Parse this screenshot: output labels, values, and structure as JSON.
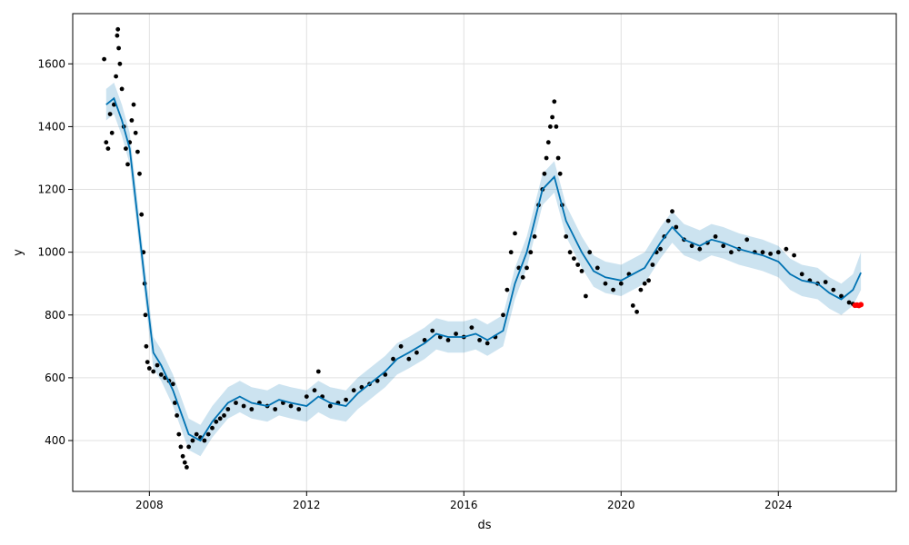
{
  "chart_data": {
    "type": "line",
    "title": "",
    "xlabel": "ds",
    "ylabel": "y",
    "xlim": [
      2006.05,
      2027.0
    ],
    "ylim": [
      238,
      1760
    ],
    "grid": true,
    "x_ticks": [
      {
        "value": 2008,
        "label": "2008"
      },
      {
        "value": 2012,
        "label": "2012"
      },
      {
        "value": 2016,
        "label": "2016"
      },
      {
        "value": 2020,
        "label": "2020"
      },
      {
        "value": 2024,
        "label": "2024"
      }
    ],
    "y_ticks": [
      {
        "value": 400,
        "label": "400"
      },
      {
        "value": 600,
        "label": "600"
      },
      {
        "value": 800,
        "label": "800"
      },
      {
        "value": 1000,
        "label": "1000"
      },
      {
        "value": 1200,
        "label": "1200"
      },
      {
        "value": 1400,
        "label": "1400"
      },
      {
        "value": 1600,
        "label": "1600"
      }
    ],
    "colors": {
      "observed": "#000000",
      "forecast": "#0072B2",
      "interval": "#0072B2",
      "highlight": "#ff0000",
      "grid": "#e0e0e0"
    },
    "series": [
      {
        "role": "observed",
        "kind": "scatter",
        "points": [
          [
            2006.85,
            1615
          ],
          [
            2006.9,
            1350
          ],
          [
            2006.95,
            1330
          ],
          [
            2007.0,
            1440
          ],
          [
            2007.05,
            1380
          ],
          [
            2007.1,
            1470
          ],
          [
            2007.15,
            1560
          ],
          [
            2007.18,
            1690
          ],
          [
            2007.2,
            1710
          ],
          [
            2007.22,
            1650
          ],
          [
            2007.25,
            1600
          ],
          [
            2007.3,
            1520
          ],
          [
            2007.35,
            1400
          ],
          [
            2007.4,
            1330
          ],
          [
            2007.45,
            1280
          ],
          [
            2007.5,
            1350
          ],
          [
            2007.55,
            1420
          ],
          [
            2007.6,
            1470
          ],
          [
            2007.65,
            1380
          ],
          [
            2007.7,
            1320
          ],
          [
            2007.75,
            1250
          ],
          [
            2007.8,
            1120
          ],
          [
            2007.85,
            1000
          ],
          [
            2007.88,
            900
          ],
          [
            2007.9,
            800
          ],
          [
            2007.92,
            700
          ],
          [
            2007.95,
            650
          ],
          [
            2008.0,
            630
          ],
          [
            2008.1,
            620
          ],
          [
            2008.2,
            640
          ],
          [
            2008.3,
            610
          ],
          [
            2008.4,
            600
          ],
          [
            2008.5,
            590
          ],
          [
            2008.6,
            580
          ],
          [
            2008.65,
            520
          ],
          [
            2008.7,
            480
          ],
          [
            2008.75,
            420
          ],
          [
            2008.8,
            380
          ],
          [
            2008.85,
            350
          ],
          [
            2008.9,
            330
          ],
          [
            2008.95,
            315
          ],
          [
            2009.0,
            380
          ],
          [
            2009.1,
            400
          ],
          [
            2009.2,
            420
          ],
          [
            2009.3,
            410
          ],
          [
            2009.4,
            400
          ],
          [
            2009.5,
            420
          ],
          [
            2009.6,
            440
          ],
          [
            2009.7,
            460
          ],
          [
            2009.8,
            470
          ],
          [
            2009.9,
            480
          ],
          [
            2010.0,
            500
          ],
          [
            2010.2,
            520
          ],
          [
            2010.4,
            510
          ],
          [
            2010.6,
            500
          ],
          [
            2010.8,
            520
          ],
          [
            2011.0,
            510
          ],
          [
            2011.2,
            500
          ],
          [
            2011.4,
            520
          ],
          [
            2011.6,
            510
          ],
          [
            2011.8,
            500
          ],
          [
            2012.0,
            540
          ],
          [
            2012.2,
            560
          ],
          [
            2012.3,
            620
          ],
          [
            2012.4,
            540
          ],
          [
            2012.6,
            510
          ],
          [
            2012.8,
            520
          ],
          [
            2013.0,
            530
          ],
          [
            2013.2,
            560
          ],
          [
            2013.4,
            570
          ],
          [
            2013.6,
            580
          ],
          [
            2013.8,
            590
          ],
          [
            2014.0,
            610
          ],
          [
            2014.2,
            660
          ],
          [
            2014.4,
            700
          ],
          [
            2014.6,
            660
          ],
          [
            2014.8,
            680
          ],
          [
            2015.0,
            720
          ],
          [
            2015.2,
            750
          ],
          [
            2015.4,
            730
          ],
          [
            2015.6,
            720
          ],
          [
            2015.8,
            740
          ],
          [
            2016.0,
            730
          ],
          [
            2016.2,
            760
          ],
          [
            2016.4,
            720
          ],
          [
            2016.6,
            710
          ],
          [
            2016.8,
            730
          ],
          [
            2017.0,
            800
          ],
          [
            2017.1,
            880
          ],
          [
            2017.2,
            1000
          ],
          [
            2017.3,
            1060
          ],
          [
            2017.4,
            950
          ],
          [
            2017.5,
            920
          ],
          [
            2017.6,
            950
          ],
          [
            2017.7,
            1000
          ],
          [
            2017.8,
            1050
          ],
          [
            2017.9,
            1150
          ],
          [
            2018.0,
            1200
          ],
          [
            2018.05,
            1250
          ],
          [
            2018.1,
            1300
          ],
          [
            2018.15,
            1350
          ],
          [
            2018.2,
            1400
          ],
          [
            2018.25,
            1430
          ],
          [
            2018.3,
            1480
          ],
          [
            2018.35,
            1400
          ],
          [
            2018.4,
            1300
          ],
          [
            2018.45,
            1250
          ],
          [
            2018.5,
            1150
          ],
          [
            2018.6,
            1050
          ],
          [
            2018.7,
            1000
          ],
          [
            2018.8,
            980
          ],
          [
            2018.9,
            960
          ],
          [
            2019.0,
            940
          ],
          [
            2019.1,
            860
          ],
          [
            2019.2,
            1000
          ],
          [
            2019.4,
            950
          ],
          [
            2019.6,
            900
          ],
          [
            2019.8,
            880
          ],
          [
            2020.0,
            900
          ],
          [
            2020.2,
            930
          ],
          [
            2020.3,
            830
          ],
          [
            2020.4,
            810
          ],
          [
            2020.5,
            880
          ],
          [
            2020.6,
            900
          ],
          [
            2020.7,
            910
          ],
          [
            2020.8,
            960
          ],
          [
            2020.9,
            1000
          ],
          [
            2021.0,
            1010
          ],
          [
            2021.1,
            1050
          ],
          [
            2021.2,
            1100
          ],
          [
            2021.3,
            1130
          ],
          [
            2021.4,
            1080
          ],
          [
            2021.6,
            1040
          ],
          [
            2021.8,
            1020
          ],
          [
            2022.0,
            1010
          ],
          [
            2022.2,
            1030
          ],
          [
            2022.4,
            1050
          ],
          [
            2022.6,
            1020
          ],
          [
            2022.8,
            1000
          ],
          [
            2023.0,
            1010
          ],
          [
            2023.2,
            1040
          ],
          [
            2023.4,
            1000
          ],
          [
            2023.6,
            1000
          ],
          [
            2023.8,
            995
          ],
          [
            2024.0,
            1000
          ],
          [
            2024.2,
            1010
          ],
          [
            2024.4,
            990
          ],
          [
            2024.6,
            930
          ],
          [
            2024.8,
            910
          ],
          [
            2025.0,
            900
          ],
          [
            2025.2,
            905
          ],
          [
            2025.4,
            880
          ],
          [
            2025.6,
            860
          ],
          [
            2025.8,
            840
          ],
          [
            2025.9,
            835
          ],
          [
            2026.0,
            830
          ]
        ]
      },
      {
        "role": "forecast",
        "kind": "line",
        "x": [
          2006.9,
          2007.1,
          2007.3,
          2007.5,
          2007.7,
          2007.9,
          2008.1,
          2008.3,
          2008.6,
          2009.0,
          2009.3,
          2009.6,
          2010.0,
          2010.3,
          2010.6,
          2011.0,
          2011.3,
          2011.6,
          2012.0,
          2012.3,
          2012.6,
          2013.0,
          2013.3,
          2013.6,
          2014.0,
          2014.3,
          2014.6,
          2015.0,
          2015.3,
          2015.6,
          2016.0,
          2016.3,
          2016.6,
          2017.0,
          2017.3,
          2017.6,
          2018.0,
          2018.3,
          2018.6,
          2019.0,
          2019.3,
          2019.6,
          2020.0,
          2020.3,
          2020.6,
          2021.0,
          2021.3,
          2021.6,
          2022.0,
          2022.3,
          2022.6,
          2023.0,
          2023.3,
          2023.6,
          2024.0,
          2024.3,
          2024.6,
          2025.0,
          2025.3,
          2025.6,
          2025.9,
          2026.1
        ],
        "y": [
          1470,
          1490,
          1420,
          1330,
          1110,
          890,
          680,
          640,
          560,
          420,
          400,
          460,
          520,
          540,
          520,
          510,
          530,
          520,
          510,
          540,
          520,
          510,
          550,
          580,
          620,
          660,
          680,
          710,
          740,
          730,
          730,
          740,
          720,
          750,
          900,
          1000,
          1200,
          1240,
          1100,
          1000,
          940,
          920,
          910,
          930,
          950,
          1030,
          1080,
          1040,
          1020,
          1040,
          1030,
          1010,
          1000,
          990,
          970,
          930,
          910,
          900,
          870,
          850,
          880,
          935
        ]
      },
      {
        "role": "interval",
        "kind": "band",
        "x": [
          2006.9,
          2007.1,
          2007.3,
          2007.5,
          2007.7,
          2007.9,
          2008.1,
          2008.3,
          2008.6,
          2009.0,
          2009.3,
          2009.6,
          2010.0,
          2010.3,
          2010.6,
          2011.0,
          2011.3,
          2011.6,
          2012.0,
          2012.3,
          2012.6,
          2013.0,
          2013.3,
          2013.6,
          2014.0,
          2014.3,
          2014.6,
          2015.0,
          2015.3,
          2015.6,
          2016.0,
          2016.3,
          2016.6,
          2017.0,
          2017.3,
          2017.6,
          2018.0,
          2018.3,
          2018.6,
          2019.0,
          2019.3,
          2019.6,
          2020.0,
          2020.3,
          2020.6,
          2021.0,
          2021.3,
          2021.6,
          2022.0,
          2022.3,
          2022.6,
          2023.0,
          2023.3,
          2023.6,
          2024.0,
          2024.3,
          2024.6,
          2025.0,
          2025.3,
          2025.6,
          2025.9,
          2026.1
        ],
        "lower": [
          1420,
          1440,
          1370,
          1280,
          1060,
          840,
          630,
          590,
          510,
          370,
          350,
          410,
          470,
          490,
          470,
          460,
          480,
          470,
          460,
          490,
          470,
          460,
          500,
          530,
          570,
          610,
          630,
          660,
          690,
          680,
          680,
          690,
          670,
          700,
          850,
          950,
          1150,
          1190,
          1050,
          950,
          890,
          870,
          860,
          880,
          900,
          980,
          1030,
          990,
          970,
          990,
          980,
          960,
          950,
          940,
          920,
          880,
          860,
          850,
          820,
          800,
          830,
          880
        ],
        "upper": [
          1520,
          1540,
          1470,
          1380,
          1160,
          940,
          730,
          690,
          610,
          470,
          450,
          510,
          570,
          590,
          570,
          560,
          580,
          570,
          560,
          590,
          570,
          560,
          600,
          630,
          670,
          710,
          730,
          760,
          790,
          780,
          780,
          790,
          770,
          800,
          950,
          1050,
          1250,
          1290,
          1150,
          1050,
          990,
          970,
          960,
          980,
          1000,
          1080,
          1130,
          1090,
          1070,
          1090,
          1080,
          1060,
          1050,
          1040,
          1020,
          980,
          960,
          950,
          920,
          900,
          930,
          1000
        ]
      },
      {
        "role": "highlight",
        "kind": "scatter",
        "points": [
          [
            2025.95,
            831
          ],
          [
            2026.0,
            832
          ],
          [
            2026.05,
            830
          ],
          [
            2026.1,
            833
          ]
        ]
      }
    ]
  }
}
